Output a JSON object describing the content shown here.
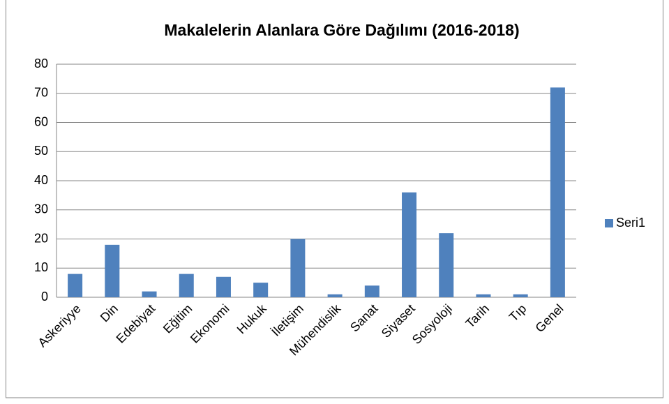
{
  "chart_data": {
    "type": "bar",
    "title": "Makalelerin Alanlara Göre Dağılımı (2016-2018)",
    "categories": [
      "Askeriyye",
      "Din",
      "Edebiyat",
      "Eğitim",
      "Ekonomi",
      "Hukuk",
      "İletişim",
      "Mühendislik",
      "Sanat",
      "Siyaset",
      "Sosyoloji",
      "Tarih",
      "Tıp",
      "Genel"
    ],
    "series": [
      {
        "name": "Seri1",
        "color": "#4f81bd",
        "values": [
          8,
          18,
          2,
          8,
          7,
          5,
          20,
          1,
          4,
          36,
          22,
          1,
          1,
          72
        ]
      }
    ],
    "ylim": [
      0,
      80
    ],
    "yticks": [
      0,
      10,
      20,
      30,
      40,
      50,
      60,
      70,
      80
    ],
    "grid": true,
    "legend": "right"
  }
}
